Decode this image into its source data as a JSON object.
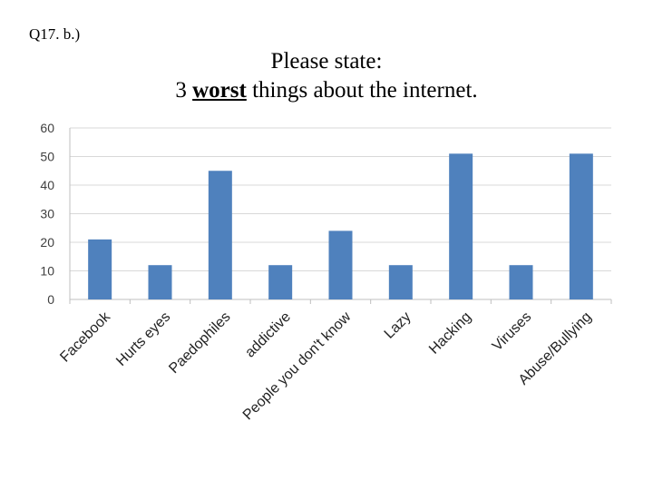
{
  "question_number": "Q17. b.)",
  "title_line1": "Please state:",
  "title_line2_prefix": "3 ",
  "title_line2_emphasis": "worst",
  "title_line2_suffix": " things about the internet.",
  "colors": {
    "bar": "#4f81bd",
    "grid": "#d9d9d9",
    "axis": "#bfbfbf"
  },
  "chart_data": {
    "type": "bar",
    "categories": [
      "Facebook",
      "Hurts eyes",
      "Paedophiles",
      "addictive",
      "People you don't know",
      "Lazy",
      "Hacking",
      "Viruses",
      "Abuse/Bullying"
    ],
    "values": [
      21,
      12,
      45,
      12,
      24,
      12,
      51,
      12,
      51
    ],
    "ylim": [
      0,
      60
    ],
    "yticks": [
      0,
      10,
      20,
      30,
      40,
      50,
      60
    ],
    "grid": true,
    "legend": "none"
  }
}
